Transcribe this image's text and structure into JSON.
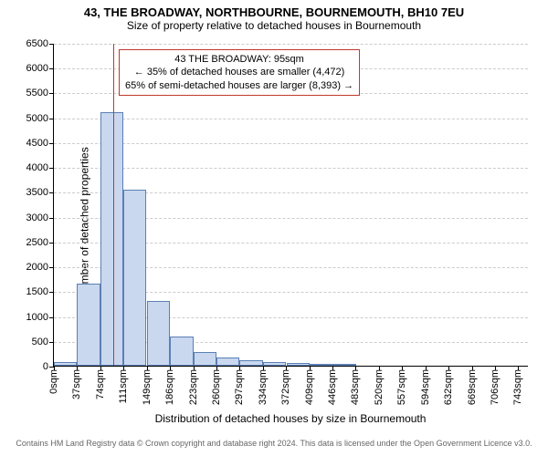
{
  "header": {
    "title": "43, THE BROADWAY, NORTHBOURNE, BOURNEMOUTH, BH10 7EU",
    "subtitle": "Size of property relative to detached houses in Bournemouth",
    "title_fontsize": 13,
    "subtitle_fontsize": 12
  },
  "chart": {
    "type": "histogram",
    "ylabel": "Number of detached properties",
    "xlabel": "Distribution of detached houses by size in Bournemouth",
    "label_fontsize": 12,
    "tick_fontsize": 11,
    "ylim": [
      0,
      6500
    ],
    "ytick_step": 500,
    "xtick_labels": [
      "0sqm",
      "37sqm",
      "74sqm",
      "111sqm",
      "149sqm",
      "186sqm",
      "223sqm",
      "260sqm",
      "297sqm",
      "334sqm",
      "372sqm",
      "409sqm",
      "446sqm",
      "483sqm",
      "520sqm",
      "557sqm",
      "594sqm",
      "632sqm",
      "669sqm",
      "706sqm",
      "743sqm"
    ],
    "xtick_step_sqm": 37.15,
    "xmax_sqm": 760,
    "bin_width_sqm": 37.15,
    "bars": [
      {
        "x_sqm": 0,
        "count": 80
      },
      {
        "x_sqm": 37,
        "count": 1650
      },
      {
        "x_sqm": 74,
        "count": 5100
      },
      {
        "x_sqm": 111,
        "count": 3550
      },
      {
        "x_sqm": 149,
        "count": 1300
      },
      {
        "x_sqm": 186,
        "count": 580
      },
      {
        "x_sqm": 223,
        "count": 280
      },
      {
        "x_sqm": 260,
        "count": 160
      },
      {
        "x_sqm": 297,
        "count": 110
      },
      {
        "x_sqm": 334,
        "count": 70
      },
      {
        "x_sqm": 372,
        "count": 50
      },
      {
        "x_sqm": 409,
        "count": 40
      },
      {
        "x_sqm": 446,
        "count": 20
      }
    ],
    "bar_fill": "#c9d8ef",
    "bar_stroke": "#5b7fb5",
    "bar_stroke_width": 1,
    "grid_color": "#cccccc",
    "background_color": "#ffffff",
    "marker": {
      "x_sqm": 95,
      "line_color": "#c0392b",
      "line_width": 1.5,
      "callout_border": "#c0392b",
      "callout_lines": [
        "43 THE BROADWAY: 95sqm",
        "← 35% of detached houses are smaller (4,472)",
        "65% of semi-detached houses are larger (8,393) →"
      ],
      "callout_fontsize": 11
    }
  },
  "footer": {
    "text": "Contains HM Land Registry data © Crown copyright and database right 2024. This data is licensed under the Open Government Licence v3.0.",
    "fontsize": 9,
    "color": "#666666"
  }
}
